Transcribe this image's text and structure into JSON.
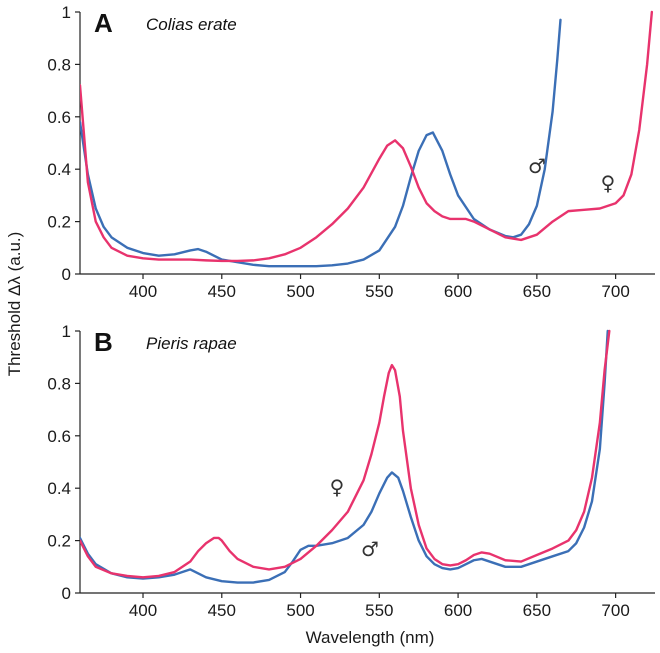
{
  "figure": {
    "ylabel": "Threshold Δλ (a.u.)",
    "xlabel": "Wavelength (nm)"
  },
  "colors": {
    "male": "#3b6fb6",
    "female": "#e8336d"
  },
  "chart_data": [
    {
      "type": "line",
      "panel_letter": "A",
      "species": "Colias erate",
      "xlim": [
        360,
        725
      ],
      "ylim": [
        0,
        1
      ],
      "xticks": [
        400,
        450,
        500,
        550,
        600,
        650,
        700
      ],
      "yticks": [
        0,
        0.2,
        0.4,
        0.6,
        0.8,
        1
      ],
      "ytick_labels": [
        "0",
        "0.2",
        "0.4",
        "0.6",
        "0.8",
        "1"
      ],
      "series": [
        {
          "symbol": "♂",
          "color_key": "male",
          "x": [
            360,
            365,
            370,
            375,
            380,
            390,
            400,
            410,
            420,
            430,
            435,
            440,
            450,
            460,
            470,
            480,
            490,
            500,
            510,
            520,
            530,
            540,
            550,
            560,
            565,
            570,
            575,
            580,
            584,
            590,
            595,
            600,
            610,
            620,
            630,
            635,
            640,
            645,
            650,
            655,
            660,
            663,
            665
          ],
          "y": [
            0.58,
            0.38,
            0.25,
            0.18,
            0.14,
            0.1,
            0.08,
            0.07,
            0.075,
            0.09,
            0.095,
            0.085,
            0.055,
            0.045,
            0.035,
            0.03,
            0.03,
            0.03,
            0.03,
            0.033,
            0.04,
            0.055,
            0.09,
            0.18,
            0.26,
            0.37,
            0.47,
            0.53,
            0.54,
            0.47,
            0.38,
            0.3,
            0.21,
            0.17,
            0.145,
            0.14,
            0.15,
            0.19,
            0.26,
            0.4,
            0.62,
            0.82,
            0.97
          ]
        },
        {
          "symbol": "♀",
          "color_key": "female",
          "x": [
            360,
            365,
            370,
            375,
            380,
            390,
            400,
            410,
            420,
            430,
            440,
            450,
            460,
            470,
            480,
            490,
            500,
            510,
            520,
            530,
            540,
            550,
            555,
            560,
            565,
            570,
            575,
            580,
            585,
            590,
            595,
            600,
            605,
            610,
            620,
            630,
            640,
            650,
            660,
            670,
            680,
            690,
            700,
            705,
            710,
            715,
            720,
            723
          ],
          "y": [
            0.72,
            0.35,
            0.2,
            0.14,
            0.1,
            0.07,
            0.06,
            0.055,
            0.055,
            0.055,
            0.052,
            0.05,
            0.05,
            0.052,
            0.06,
            0.075,
            0.1,
            0.14,
            0.19,
            0.25,
            0.33,
            0.44,
            0.49,
            0.51,
            0.48,
            0.41,
            0.33,
            0.27,
            0.24,
            0.22,
            0.21,
            0.21,
            0.21,
            0.2,
            0.17,
            0.14,
            0.13,
            0.15,
            0.2,
            0.24,
            0.245,
            0.25,
            0.27,
            0.3,
            0.38,
            0.55,
            0.8,
            1.0
          ]
        }
      ]
    },
    {
      "type": "line",
      "panel_letter": "B",
      "species": "Pieris rapae",
      "xlim": [
        360,
        725
      ],
      "ylim": [
        0,
        1
      ],
      "xticks": [
        400,
        450,
        500,
        550,
        600,
        650,
        700
      ],
      "yticks": [
        0,
        0.2,
        0.4,
        0.6,
        0.8,
        1
      ],
      "ytick_labels": [
        "0",
        "0.2",
        "0.4",
        "0.6",
        "0.8",
        "1"
      ],
      "series": [
        {
          "symbol": "♂",
          "color_key": "male",
          "x": [
            360,
            365,
            370,
            380,
            390,
            400,
            410,
            420,
            430,
            440,
            450,
            460,
            470,
            480,
            490,
            495,
            500,
            505,
            510,
            520,
            530,
            540,
            545,
            550,
            555,
            558,
            562,
            565,
            570,
            575,
            580,
            585,
            590,
            595,
            600,
            605,
            610,
            615,
            620,
            630,
            640,
            650,
            660,
            670,
            675,
            680,
            685,
            690,
            693,
            695
          ],
          "y": [
            0.21,
            0.15,
            0.11,
            0.075,
            0.06,
            0.055,
            0.06,
            0.07,
            0.09,
            0.06,
            0.045,
            0.04,
            0.04,
            0.05,
            0.08,
            0.12,
            0.165,
            0.18,
            0.18,
            0.19,
            0.21,
            0.26,
            0.31,
            0.38,
            0.44,
            0.46,
            0.44,
            0.39,
            0.29,
            0.2,
            0.14,
            0.11,
            0.095,
            0.09,
            0.095,
            0.11,
            0.125,
            0.13,
            0.12,
            0.1,
            0.1,
            0.12,
            0.14,
            0.16,
            0.19,
            0.25,
            0.35,
            0.55,
            0.8,
            1.0
          ]
        },
        {
          "symbol": "♀",
          "color_key": "female",
          "x": [
            360,
            365,
            370,
            380,
            390,
            400,
            410,
            420,
            430,
            435,
            440,
            445,
            448,
            450,
            455,
            460,
            470,
            480,
            490,
            500,
            510,
            520,
            530,
            540,
            545,
            550,
            553,
            556,
            558,
            560,
            563,
            565,
            570,
            575,
            580,
            585,
            590,
            595,
            600,
            605,
            610,
            615,
            620,
            630,
            640,
            650,
            660,
            670,
            675,
            680,
            685,
            690,
            693,
            696
          ],
          "y": [
            0.2,
            0.14,
            0.1,
            0.075,
            0.065,
            0.06,
            0.065,
            0.08,
            0.12,
            0.16,
            0.19,
            0.21,
            0.21,
            0.2,
            0.16,
            0.13,
            0.1,
            0.09,
            0.1,
            0.13,
            0.18,
            0.24,
            0.31,
            0.43,
            0.53,
            0.65,
            0.75,
            0.84,
            0.87,
            0.85,
            0.75,
            0.62,
            0.4,
            0.26,
            0.17,
            0.13,
            0.11,
            0.105,
            0.11,
            0.125,
            0.145,
            0.155,
            0.15,
            0.125,
            0.12,
            0.145,
            0.17,
            0.2,
            0.24,
            0.31,
            0.44,
            0.65,
            0.85,
            1.0
          ]
        }
      ]
    }
  ]
}
